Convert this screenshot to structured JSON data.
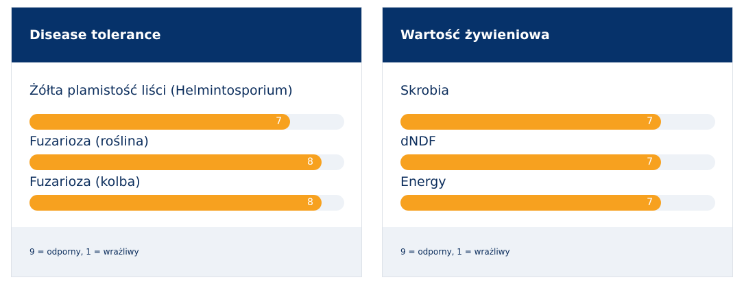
{
  "cards": [
    {
      "title": "Disease tolerance",
      "items": [
        {
          "label": "Żółta plamistość liści (Helmintosporium)",
          "value": 7
        },
        {
          "label": "Fuzarioza (roślina)",
          "value": 8
        },
        {
          "label": "Fuzarioza (kolba)",
          "value": 8
        }
      ],
      "footer": "9 = odporny, 1 = wrażliwy"
    },
    {
      "title": "Wartość żywieniowa",
      "items": [
        {
          "label": "Skrobia",
          "value": 7
        },
        {
          "label": "dNDF",
          "value": 7
        },
        {
          "label": "Energy",
          "value": 7
        }
      ],
      "footer": "9 = odporny, 1 = wrażliwy"
    }
  ]
}
